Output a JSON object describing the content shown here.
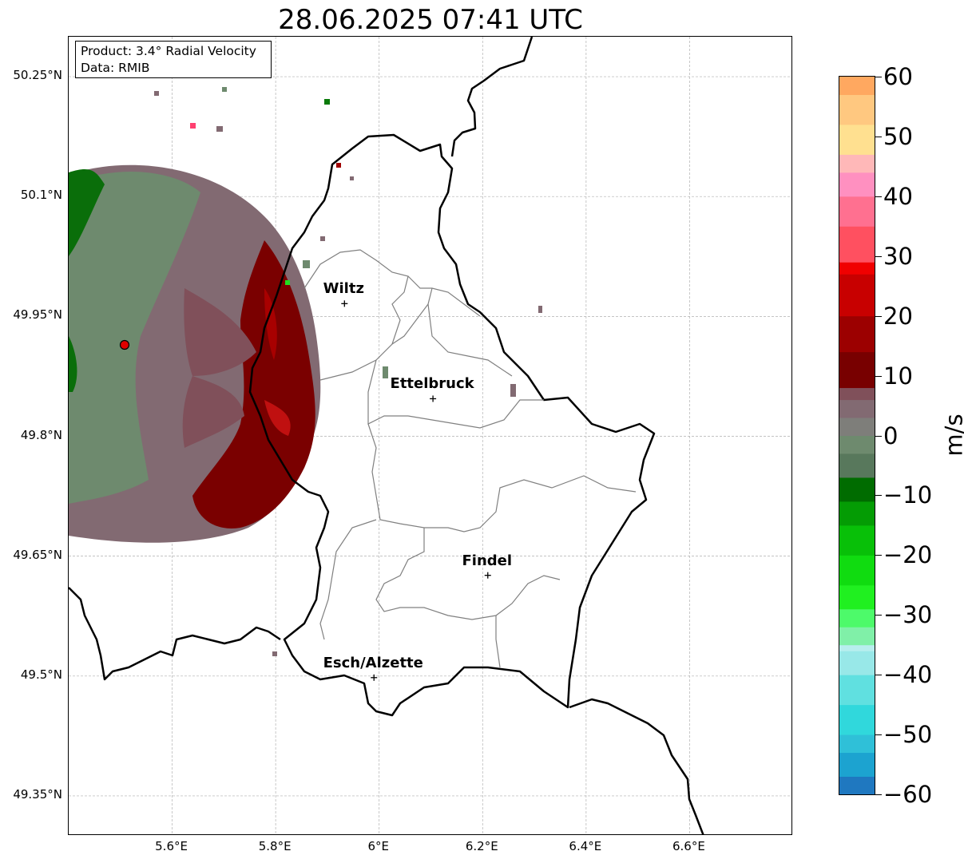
{
  "title": "28.06.2025 07:41 UTC",
  "info_box": {
    "product": "Product: 3.4° Radial Velocity",
    "data": "Data: RMIB"
  },
  "map": {
    "lat_ticks": [
      "50.25°N",
      "50.1°N",
      "49.95°N",
      "49.8°N",
      "49.65°N",
      "49.5°N",
      "49.35°N"
    ],
    "lon_ticks": [
      "5.6°E",
      "5.8°E",
      "6°E",
      "6.2°E",
      "6.4°E",
      "6.6°E"
    ],
    "lat_values": [
      50.25,
      50.1,
      49.95,
      49.8,
      49.65,
      49.5,
      49.35
    ],
    "lon_values": [
      5.6,
      5.8,
      6.0,
      6.2,
      6.4,
      6.6
    ],
    "extent": {
      "lon_min": 5.4,
      "lon_max": 6.8,
      "lat_min": 49.3,
      "lat_max": 50.3
    },
    "radar_site": {
      "name": "",
      "lon": 5.505,
      "lat": 49.914
    },
    "cities": [
      {
        "name": "Wiltz",
        "lon": 5.933,
        "lat": 49.966
      },
      {
        "name": "Ettelbruck",
        "lon": 6.104,
        "lat": 49.847
      },
      {
        "name": "Findel",
        "lon": 6.21,
        "lat": 49.626
      },
      {
        "name": "Esch/Alzette",
        "lon": 5.99,
        "lat": 49.498
      }
    ],
    "grid": true,
    "colors": {
      "border": "#000000",
      "cantons": "#808080",
      "grid": "#b0b0b0",
      "radar_site_fill": "#e00000"
    }
  },
  "colorbar": {
    "unit": "m/s",
    "min": -60,
    "max": 60,
    "tick_labels": [
      "60",
      "50",
      "40",
      "30",
      "20",
      "10",
      "0",
      "−10",
      "−20",
      "−30",
      "−40",
      "−50",
      "−60"
    ],
    "tick_values": [
      60,
      50,
      40,
      30,
      20,
      10,
      0,
      -10,
      -20,
      -30,
      -40,
      -50,
      -60
    ],
    "color_stops": [
      {
        "value": -60,
        "color": "#1f78c0"
      },
      {
        "value": -57,
        "color": "#1ca3d0"
      },
      {
        "value": -53,
        "color": "#2fc0d8"
      },
      {
        "value": -50,
        "color": "#30d8dc"
      },
      {
        "value": -45,
        "color": "#60e0e0"
      },
      {
        "value": -40,
        "color": "#98e8e8"
      },
      {
        "value": -36,
        "color": "#b8eeee"
      },
      {
        "value": -35,
        "color": "#80f0a8"
      },
      {
        "value": -32,
        "color": "#4dfa6a"
      },
      {
        "value": -29,
        "color": "#20f020"
      },
      {
        "value": -25,
        "color": "#10dc10"
      },
      {
        "value": -20,
        "color": "#08c008"
      },
      {
        "value": -15,
        "color": "#049c04"
      },
      {
        "value": -11,
        "color": "#006c00"
      },
      {
        "value": -7,
        "color": "#58785c"
      },
      {
        "value": -3,
        "color": "#6e8a6e"
      },
      {
        "value": 0,
        "color": "#7e7e7a"
      },
      {
        "value": 3,
        "color": "#826a72"
      },
      {
        "value": 6,
        "color": "#80505a"
      },
      {
        "value": 8,
        "color": "#780000"
      },
      {
        "value": 14,
        "color": "#9c0000"
      },
      {
        "value": 20,
        "color": "#c80000"
      },
      {
        "value": 27,
        "color": "#f00000"
      },
      {
        "value": 29,
        "color": "#ff5060"
      },
      {
        "value": 35,
        "color": "#ff7090"
      },
      {
        "value": 40,
        "color": "#ff90c0"
      },
      {
        "value": 44,
        "color": "#ffb8b8"
      },
      {
        "value": 47,
        "color": "#ffe090"
      },
      {
        "value": 52,
        "color": "#ffc880"
      },
      {
        "value": 57,
        "color": "#ffa860"
      },
      {
        "value": 60,
        "color": "#ff9850"
      }
    ]
  }
}
